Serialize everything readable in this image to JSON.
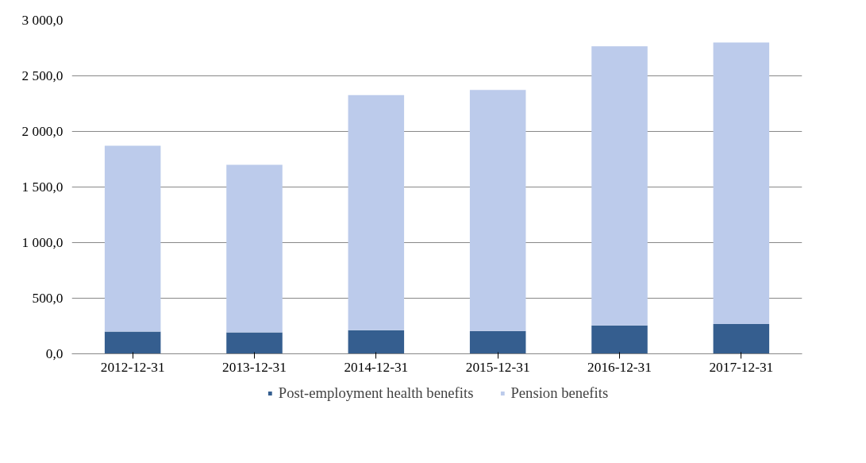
{
  "chart_data": {
    "type": "bar",
    "stacked": true,
    "categories": [
      "2012-12-31",
      "2013-12-31",
      "2014-12-31",
      "2015-12-31",
      "2016-12-31",
      "2017-12-31"
    ],
    "series": [
      {
        "name": "Post-employment health benefits",
        "color": "#355e8f",
        "values": [
          200,
          193,
          213,
          206,
          255,
          268
        ]
      },
      {
        "name": "Pension benefits",
        "color": "#bccbeb",
        "values": [
          1672,
          1507,
          2113,
          2168,
          2511,
          2532
        ]
      }
    ],
    "ylim": [
      0,
      3000
    ],
    "yticks": [
      {
        "value": 0,
        "label": "0,0"
      },
      {
        "value": 500,
        "label": "500,0"
      },
      {
        "value": 1000,
        "label": "1 000,0"
      },
      {
        "value": 1500,
        "label": "1 500,0"
      },
      {
        "value": 2000,
        "label": "2 000,0"
      },
      {
        "value": 2500,
        "label": "2 500,0"
      },
      {
        "value": 3000,
        "label": "3 000,0"
      }
    ],
    "grid": "y",
    "legend": "bottom"
  }
}
